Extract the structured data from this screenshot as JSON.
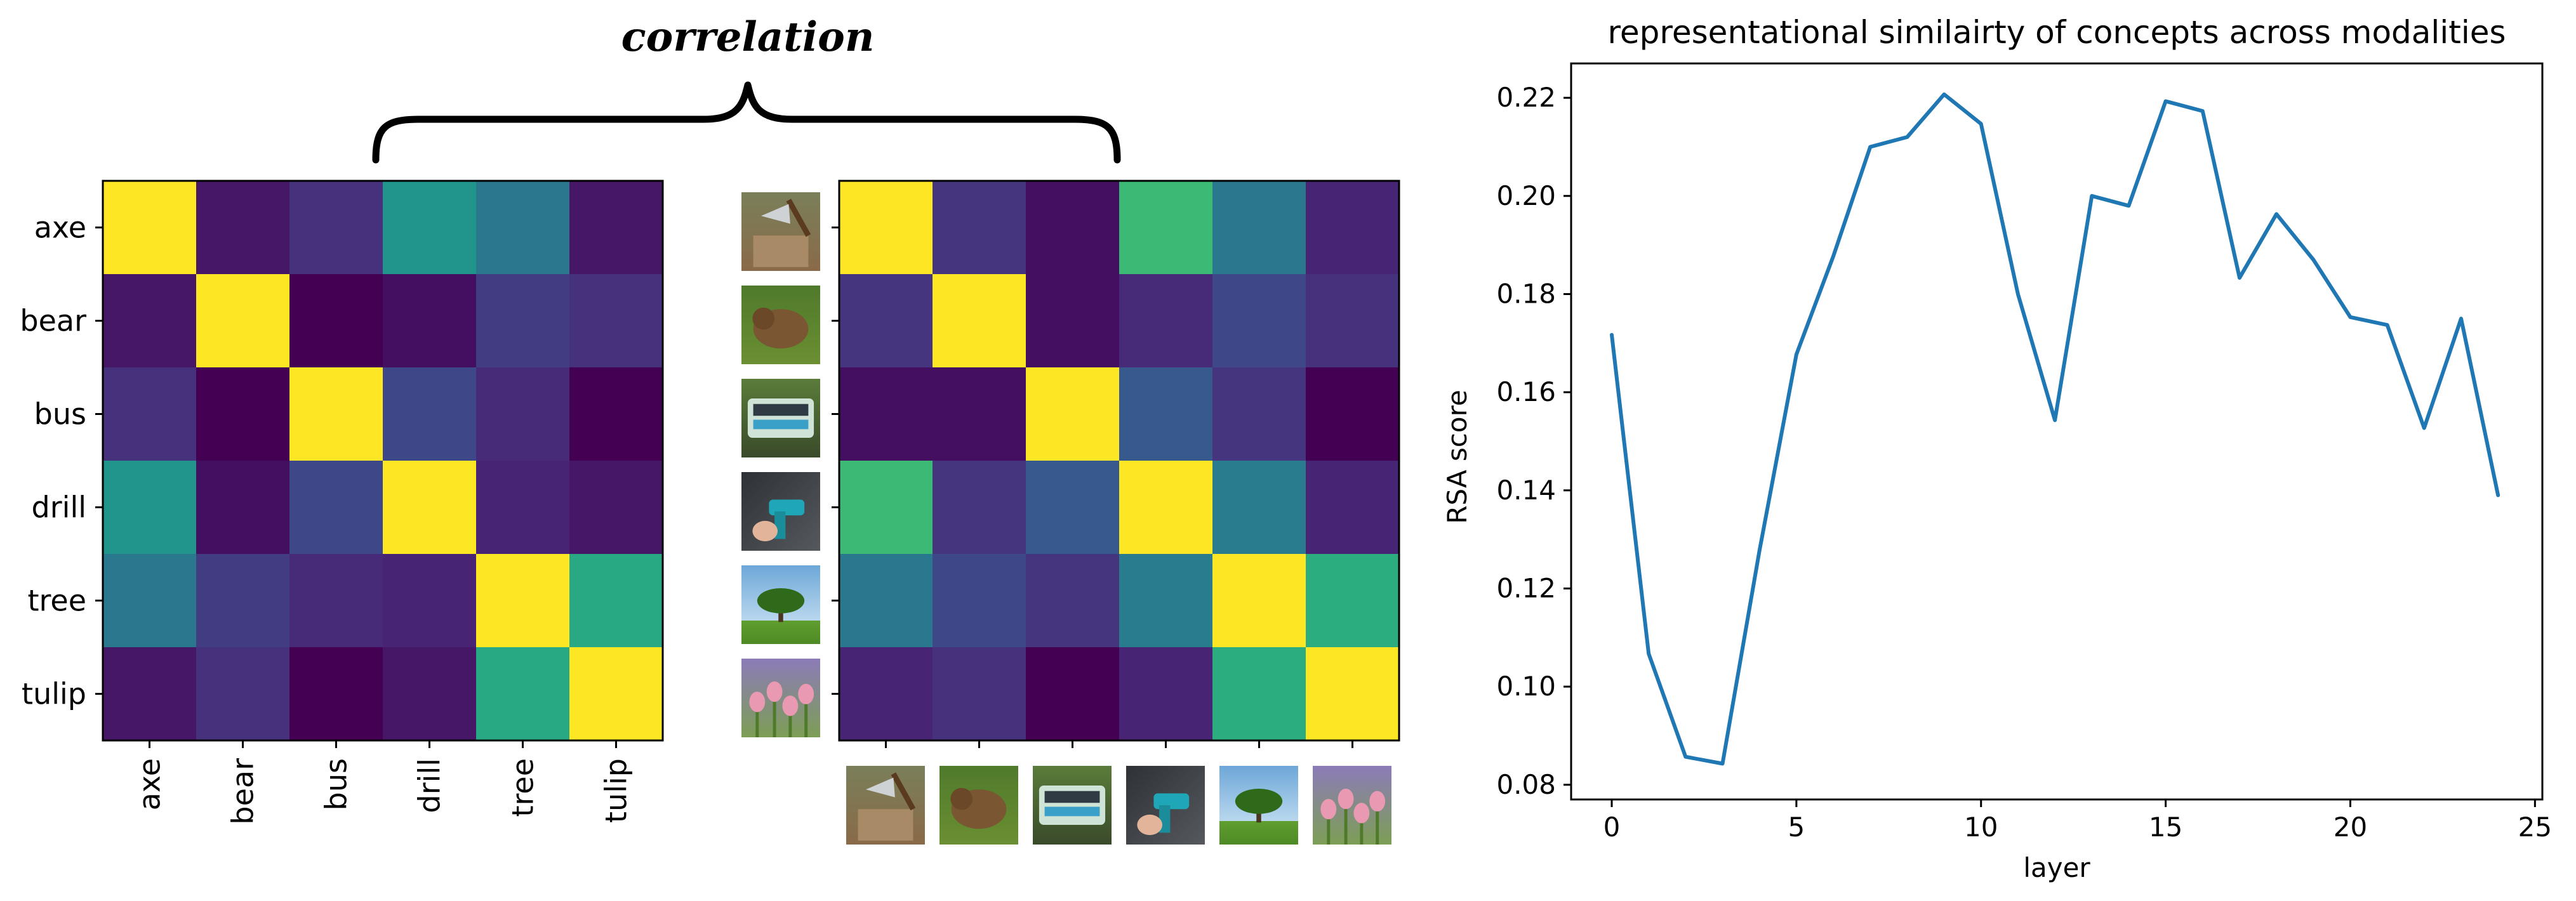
{
  "annotation": {
    "brace_label": "correlation"
  },
  "concepts": [
    "axe",
    "bear",
    "bus",
    "drill",
    "tree",
    "tulip"
  ],
  "image_icon_names": [
    "axe-photo-icon",
    "bear-photo-icon",
    "bus-photo-icon",
    "drill-photo-icon",
    "tree-photo-icon",
    "tulip-photo-icon"
  ],
  "colormap": [
    "#440154",
    "#482878",
    "#3e4989",
    "#31688e",
    "#26828e",
    "#1f9e89",
    "#35b779",
    "#6ece58",
    "#b5de2b",
    "#fde725"
  ],
  "chart_data": [
    {
      "type": "heatmap",
      "title": "",
      "rows": [
        "axe",
        "bear",
        "bus",
        "drill",
        "tree",
        "tulip"
      ],
      "columns": [
        "axe",
        "bear",
        "bus",
        "drill",
        "tree",
        "tulip"
      ],
      "values": [
        [
          1.0,
          0.06,
          0.14,
          0.52,
          0.4,
          0.06
        ],
        [
          0.06,
          1.0,
          0.0,
          0.04,
          0.18,
          0.14
        ],
        [
          0.14,
          0.0,
          1.0,
          0.22,
          0.12,
          0.0
        ],
        [
          0.52,
          0.04,
          0.22,
          1.0,
          0.1,
          0.06
        ],
        [
          0.4,
          0.18,
          0.12,
          0.1,
          1.0,
          0.6
        ],
        [
          0.06,
          0.14,
          0.0,
          0.06,
          0.6,
          1.0
        ]
      ]
    },
    {
      "type": "heatmap",
      "title": "",
      "row_axis": "images",
      "column_axis": "images",
      "values": [
        [
          1.0,
          0.15,
          0.04,
          0.68,
          0.4,
          0.1
        ],
        [
          0.15,
          1.0,
          0.04,
          0.12,
          0.22,
          0.14
        ],
        [
          0.04,
          0.04,
          1.0,
          0.28,
          0.15,
          0.0
        ],
        [
          0.68,
          0.15,
          0.28,
          1.0,
          0.42,
          0.1
        ],
        [
          0.4,
          0.22,
          0.15,
          0.42,
          1.0,
          0.62
        ],
        [
          0.1,
          0.14,
          0.0,
          0.1,
          0.62,
          1.0
        ]
      ]
    },
    {
      "type": "line",
      "title": "representational similairty of concepts across modalities",
      "xlabel": "layer",
      "ylabel": "RSA score",
      "xlim": [
        -1.1,
        25.2
      ],
      "ylim": [
        0.077,
        0.227
      ],
      "xticks": [
        0,
        5,
        10,
        15,
        20,
        25
      ],
      "yticks": [
        0.08,
        0.1,
        0.12,
        0.14,
        0.16,
        0.18,
        0.2,
        0.22
      ],
      "ytick_labels": [
        "0.08",
        "0.10",
        "0.12",
        "0.14",
        "0.16",
        "0.18",
        "0.20",
        "0.22"
      ],
      "grid": false,
      "line_color": "#1f77b4",
      "series": [
        {
          "x": [
            0,
            1,
            2,
            3,
            4,
            5,
            6,
            7,
            8,
            9,
            10,
            11,
            12,
            13,
            14,
            15,
            16,
            17,
            18,
            19,
            20,
            21,
            22,
            23,
            24
          ],
          "y": [
            0.1717,
            0.1067,
            0.0857,
            0.0843,
            0.1277,
            0.1677,
            0.1877,
            0.21,
            0.212,
            0.2207,
            0.2147,
            0.18,
            0.1543,
            0.2,
            0.198,
            0.2193,
            0.2173,
            0.1833,
            0.1963,
            0.187,
            0.1753,
            0.1737,
            0.1527,
            0.175,
            0.139
          ]
        }
      ]
    }
  ]
}
